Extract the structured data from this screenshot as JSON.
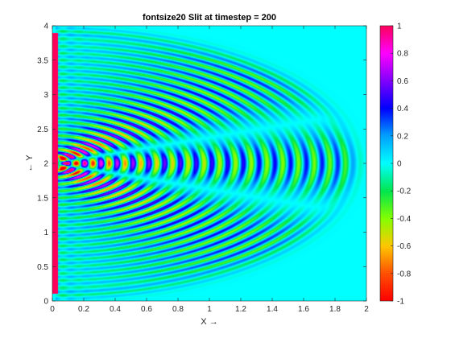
{
  "chart_data": {
    "type": "heatmap",
    "title": "fontsize20 Slit at timestep = 200",
    "xlabel": "X →",
    "ylabel": "← Y",
    "xlim": [
      0,
      2
    ],
    "ylim": [
      0,
      4
    ],
    "xticks": [
      "0",
      "0.2",
      "0.4",
      "0.6",
      "0.8",
      "1",
      "1.2",
      "1.4",
      "1.6",
      "1.8",
      "2"
    ],
    "yticks": [
      "0",
      "0.5",
      "1",
      "1.5",
      "2",
      "2.5",
      "3",
      "3.5",
      "4"
    ],
    "colorbar": {
      "range": [
        -1,
        1
      ],
      "ticks": [
        "1",
        "0.8",
        "0.6",
        "0.4",
        "0.2",
        "0",
        "-0.2",
        "-0.4",
        "-0.6",
        "-0.8",
        "-1"
      ]
    },
    "source": {
      "x_position": 0.02,
      "y_range": [
        0.1,
        3.9
      ],
      "value": 1
    },
    "slits_y": [
      1.93,
      2.07
    ],
    "wavefront_radius": 1.9,
    "wavelength": 0.1,
    "background_value": 0,
    "colors": {
      "background": "#22eaea",
      "source": "#ee1133"
    }
  }
}
